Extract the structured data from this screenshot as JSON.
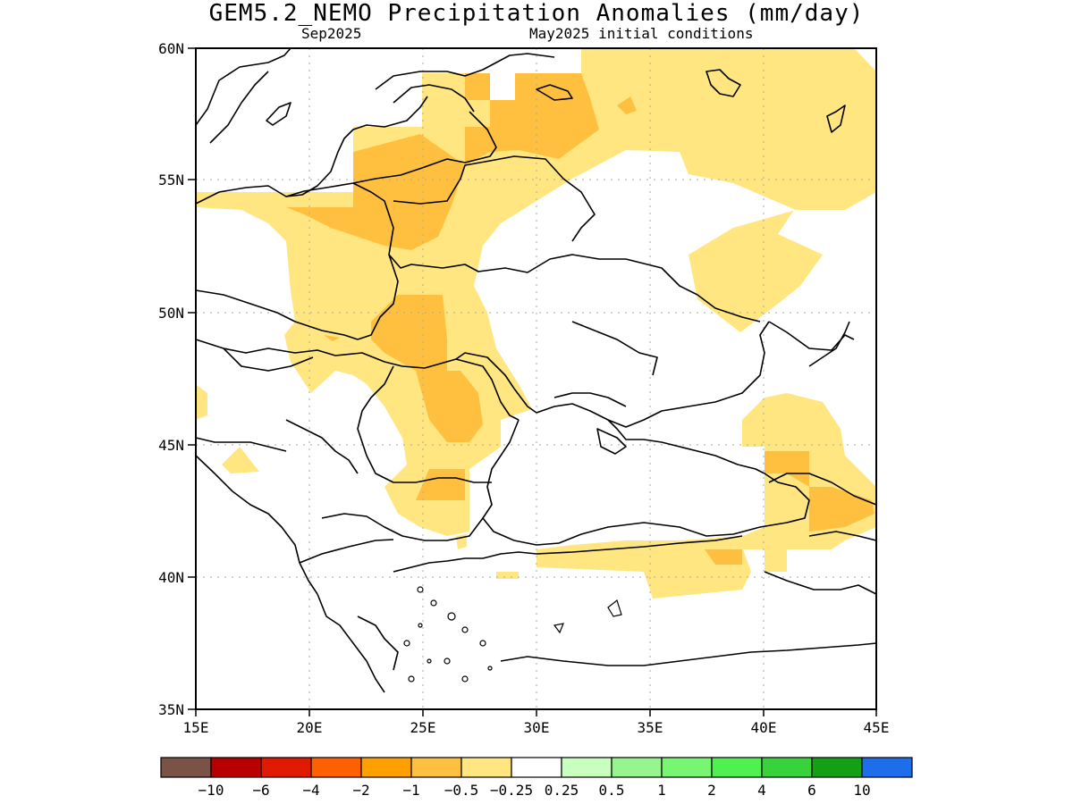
{
  "title": "GEM5.2_NEMO Precipitation Anomalies (mm/day)",
  "subtitle_left": "Sep2025",
  "subtitle_right": "May2025 initial conditions",
  "y_ticks": [
    "60N",
    "55N",
    "50N",
    "45N",
    "40N",
    "35N"
  ],
  "x_ticks": [
    "15E",
    "20E",
    "25E",
    "30E",
    "35E",
    "40E",
    "45E"
  ],
  "colorbar": {
    "colors": [
      "#7a5246",
      "#b80000",
      "#e01a00",
      "#ff6000",
      "#ffa000",
      "#ffc040",
      "#ffe680",
      "#ffffff",
      "#c8ffbe",
      "#96f58c",
      "#78f573",
      "#50f050",
      "#37d23c",
      "#14a014",
      "#1e6eeb"
    ],
    "labels": [
      "-10",
      "-6",
      "-4",
      "-2",
      "-1",
      "-0.5",
      "-0.25",
      "0.25",
      "0.5",
      "1",
      "2",
      "4",
      "6",
      "10"
    ]
  }
}
